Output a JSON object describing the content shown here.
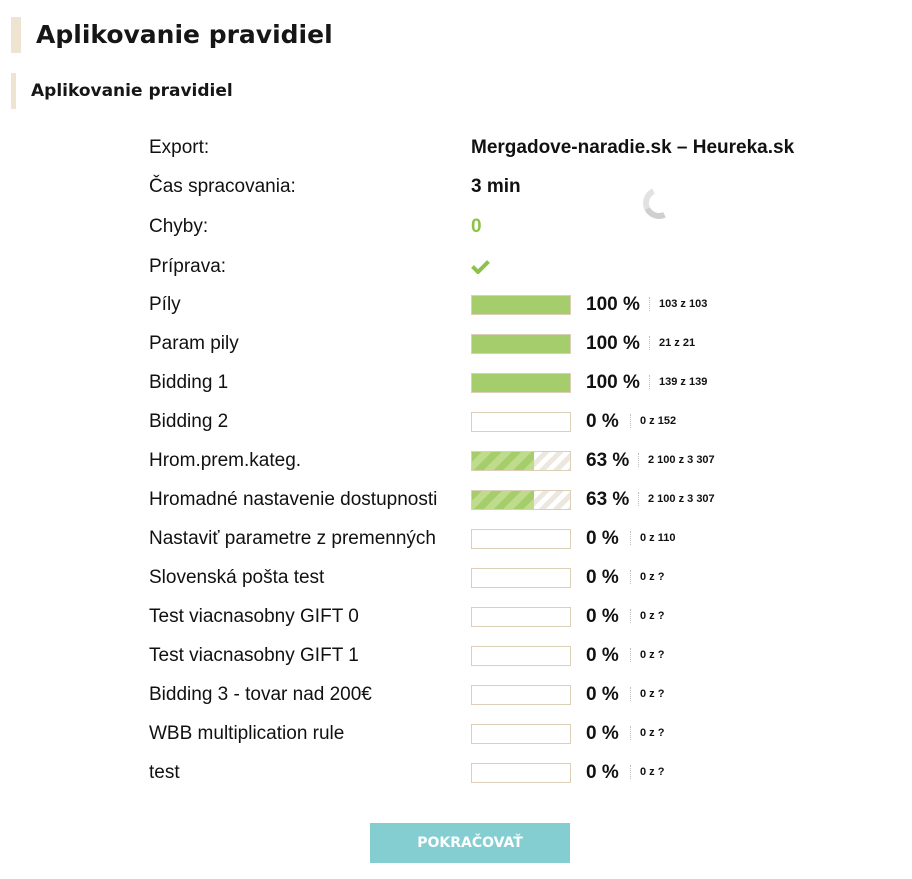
{
  "page_title": "Aplikovanie pravidiel",
  "section_title": "Aplikovanie pravidiel",
  "info": {
    "export_label": "Export:",
    "export_value": "Mergadove-naradie.sk – Heureka.sk",
    "time_label": "Čas spracovania:",
    "time_value": "3 min",
    "errors_label": "Chyby:",
    "errors_value": "0",
    "prep_label": "Príprava:"
  },
  "status_icons": {
    "prep": "checkmark-icon",
    "loading": "loading-spinner"
  },
  "colors": {
    "progress_fill": "#a6cd6b",
    "errors": "#8bc34a",
    "check": "#8bc34a",
    "button": "#84ced2"
  },
  "rules": [
    {
      "name": "Píly",
      "progress": 1.0,
      "percent": "100 %",
      "count": "103 z 103"
    },
    {
      "name": "Param pily",
      "progress": 1.0,
      "percent": "100 %",
      "count": "21 z 21"
    },
    {
      "name": "Bidding 1",
      "progress": 1.0,
      "percent": "100 %",
      "count": "139 z 139"
    },
    {
      "name": "Bidding 2",
      "progress": 0.0,
      "percent": "0 %",
      "count": "0 z 152"
    },
    {
      "name": "Hrom.prem.kateg.",
      "progress": 0.63,
      "percent": "63 %",
      "count": "2 100 z 3 307"
    },
    {
      "name": "Hromadné nastavenie dostupnosti",
      "progress": 0.63,
      "percent": "63 %",
      "count": "2 100 z 3 307"
    },
    {
      "name": "Nastaviť parametre z premenných",
      "progress": 0.0,
      "percent": "0 %",
      "count": "0 z 110"
    },
    {
      "name": "Slovenská pošta test",
      "progress": 0.0,
      "percent": "0 %",
      "count": "0 z ?"
    },
    {
      "name": "Test viacnasobny GIFT 0",
      "progress": 0.0,
      "percent": "0 %",
      "count": "0 z ?"
    },
    {
      "name": "Test viacnasobny GIFT 1",
      "progress": 0.0,
      "percent": "0 %",
      "count": "0 z ?"
    },
    {
      "name": "Bidding 3 - tovar nad 200€",
      "progress": 0.0,
      "percent": "0 %",
      "count": "0 z ?"
    },
    {
      "name": "WBB multiplication rule",
      "progress": 0.0,
      "percent": "0 %",
      "count": "0 z ?"
    },
    {
      "name": "test",
      "progress": 0.0,
      "percent": "0 %",
      "count": "0 z ?"
    }
  ],
  "continue_button": "POKRAČOVAŤ"
}
